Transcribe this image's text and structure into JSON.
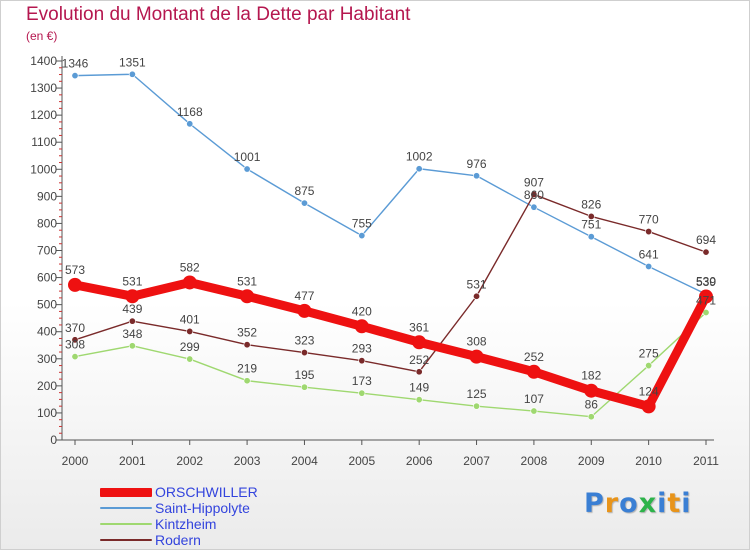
{
  "header": {
    "title": "Evolution du Montant de la Dette par Habitant",
    "unit": "(en €)"
  },
  "logo": {
    "text": "Proxiti",
    "colors": [
      "#3a7fd4",
      "#e8941a",
      "#3a7fd4",
      "#2db34a",
      "#3a7fd4",
      "#e8941a",
      "#3a7fd4"
    ]
  },
  "colors": {
    "title": "#b5174f",
    "axis": "#555555",
    "grid": "#dddddd",
    "tick_minor": "#cc3333"
  },
  "chart_data": {
    "type": "line",
    "title": "Evolution du Montant de la Dette par Habitant",
    "ylabel": "(en €)",
    "xlabel": "",
    "categories": [
      "2000",
      "2001",
      "2002",
      "2003",
      "2004",
      "2005",
      "2006",
      "2007",
      "2008",
      "2009",
      "2010",
      "2011"
    ],
    "ylim": [
      0,
      1400
    ],
    "yticks": [
      0,
      100,
      200,
      300,
      400,
      500,
      600,
      700,
      800,
      900,
      1000,
      1100,
      1200,
      1300,
      1400
    ],
    "grid": "none",
    "legend_position": "bottom-left",
    "series": [
      {
        "name": "ORSCHWILLER",
        "color": "#ee1111",
        "emphasis": true,
        "values": [
          573,
          531,
          582,
          531,
          477,
          420,
          361,
          308,
          252,
          182,
          124,
          530
        ],
        "labels": [
          "573",
          "531",
          "582",
          "531",
          "477",
          "420",
          "361",
          "308",
          "252",
          "182",
          "124",
          "530"
        ]
      },
      {
        "name": "Saint-Hippolyte",
        "color": "#5b9bd5",
        "emphasis": false,
        "values": [
          1346,
          1351,
          1168,
          1001,
          875,
          755,
          1002,
          976,
          860,
          751,
          641,
          539
        ],
        "labels": [
          "1346",
          "1351",
          "1168",
          "1001",
          "875",
          "755",
          "1002",
          "976",
          "860",
          "751",
          "641",
          "539"
        ]
      },
      {
        "name": "Kintzheim",
        "color": "#9fd870",
        "emphasis": false,
        "values": [
          308,
          348,
          299,
          219,
          195,
          173,
          149,
          125,
          107,
          86,
          275,
          471
        ],
        "labels": [
          "308",
          "348",
          "299",
          "219",
          "195",
          "173",
          "149",
          "125",
          "107",
          "86",
          "275",
          "471"
        ]
      },
      {
        "name": "Rodern",
        "color": "#7a2a2a",
        "emphasis": false,
        "values": [
          370,
          439,
          401,
          352,
          323,
          293,
          252,
          531,
          907,
          826,
          770,
          694
        ],
        "labels": [
          "370",
          "439",
          "401",
          "352",
          "323",
          "293",
          "252",
          "531",
          "907",
          "826",
          "770",
          "694"
        ]
      }
    ]
  }
}
